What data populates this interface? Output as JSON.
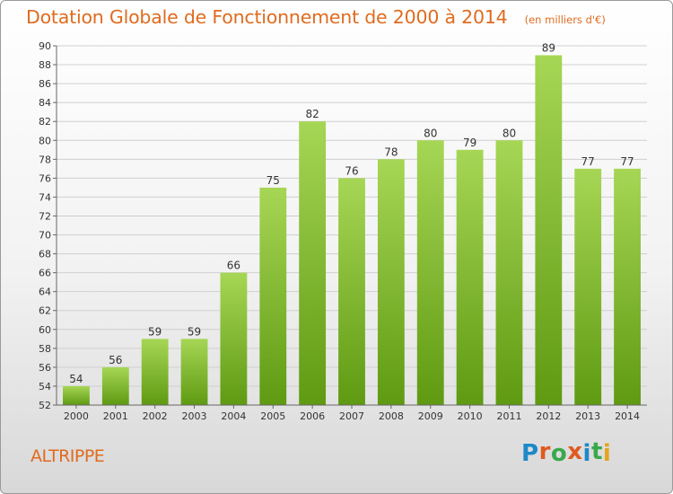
{
  "title": "Dotation Globale de Fonctionnement de 2000 à 2014",
  "unit": "(en milliers d'€)",
  "commune": "ALTRIPPE",
  "logo": {
    "text": "Proxiti",
    "colors": [
      "#1e88c8",
      "#e05a1e",
      "#3aa84a",
      "#e05a1e",
      "#1e88c8",
      "#3aa84a",
      "#e6a41e"
    ]
  },
  "colors": {
    "title": "#e06b1f",
    "bar_light": "#a6d655",
    "bar_dark": "#5f9a12",
    "grid": "#cfcfcf"
  },
  "chart_data": {
    "type": "bar",
    "categories": [
      "2000",
      "2001",
      "2002",
      "2003",
      "2004",
      "2005",
      "2006",
      "2007",
      "2008",
      "2009",
      "2010",
      "2011",
      "2012",
      "2013",
      "2014"
    ],
    "values": [
      54,
      56,
      59,
      59,
      66,
      75,
      82,
      76,
      78,
      80,
      79,
      80,
      89,
      77,
      77
    ],
    "ylim": [
      52,
      90
    ],
    "yticks": [
      52,
      54,
      56,
      58,
      60,
      62,
      64,
      66,
      68,
      70,
      72,
      74,
      76,
      78,
      80,
      82,
      84,
      86,
      88,
      90
    ],
    "grid": true
  }
}
